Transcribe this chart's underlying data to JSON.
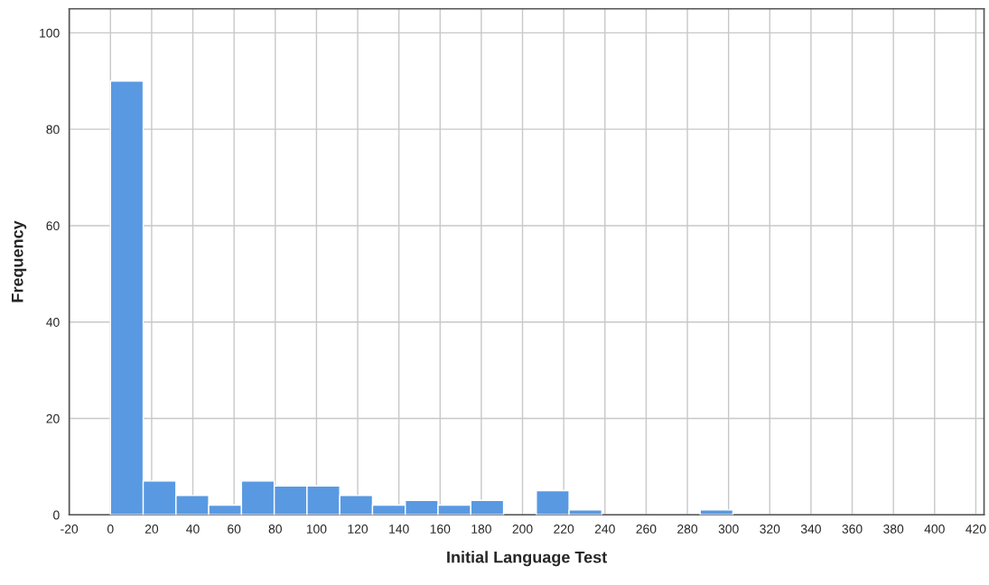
{
  "chart_data": {
    "type": "histogram",
    "xlabel": "Initial Language Test",
    "ylabel": "Frequency",
    "color": "#5899e2",
    "bins": [
      0,
      15.9,
      31.8,
      47.7,
      63.6,
      79.5,
      95.4,
      111.3,
      127.2,
      143.1,
      159,
      174.9,
      190.8,
      206.7,
      222.6,
      238.5,
      254.4,
      270.3,
      286.2,
      302.1
    ],
    "values": [
      90,
      7,
      4,
      2,
      7,
      6,
      6,
      4,
      2,
      3,
      2,
      3,
      0,
      5,
      1,
      0,
      0,
      0,
      1
    ],
    "xlim": [
      -20,
      424
    ],
    "xticks": [
      -20,
      0,
      20,
      40,
      60,
      80,
      100,
      120,
      140,
      160,
      180,
      200,
      220,
      240,
      260,
      280,
      300,
      320,
      340,
      360,
      380,
      400,
      420
    ],
    "ylim": [
      0,
      105
    ],
    "yticks": [
      0,
      20,
      40,
      60,
      80,
      100
    ],
    "grid": true
  }
}
